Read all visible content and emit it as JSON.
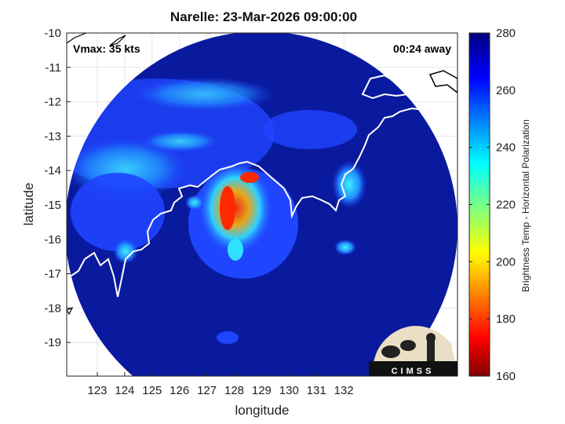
{
  "title": "Narelle: 23-Mar-2026 09:00:00",
  "vmax_label": "Vmax: 35 kts",
  "away_label": "00:24 away",
  "x_axis": {
    "label": "longitude",
    "ticks": [
      "123",
      "124",
      "125",
      "126",
      "127",
      "128",
      "129",
      "130",
      "131",
      "132"
    ]
  },
  "y_axis": {
    "label": "latitude",
    "ticks": [
      "-10",
      "-11",
      "-12",
      "-13",
      "-14",
      "-15",
      "-16",
      "-17",
      "-18",
      "-19"
    ]
  },
  "colorbar": {
    "label": "Brightness Temp - Horizontal Polarization",
    "ticks": [
      "280",
      "260",
      "240",
      "220",
      "200",
      "180",
      "160"
    ],
    "min": 160,
    "max": 280,
    "colormap": "jet"
  },
  "logo": {
    "text": "CIMSS"
  },
  "colors": {
    "background_dark_blue": "#0a1a9e",
    "coast_line": "#ffffff",
    "storm_core": "#ff2a00"
  }
}
